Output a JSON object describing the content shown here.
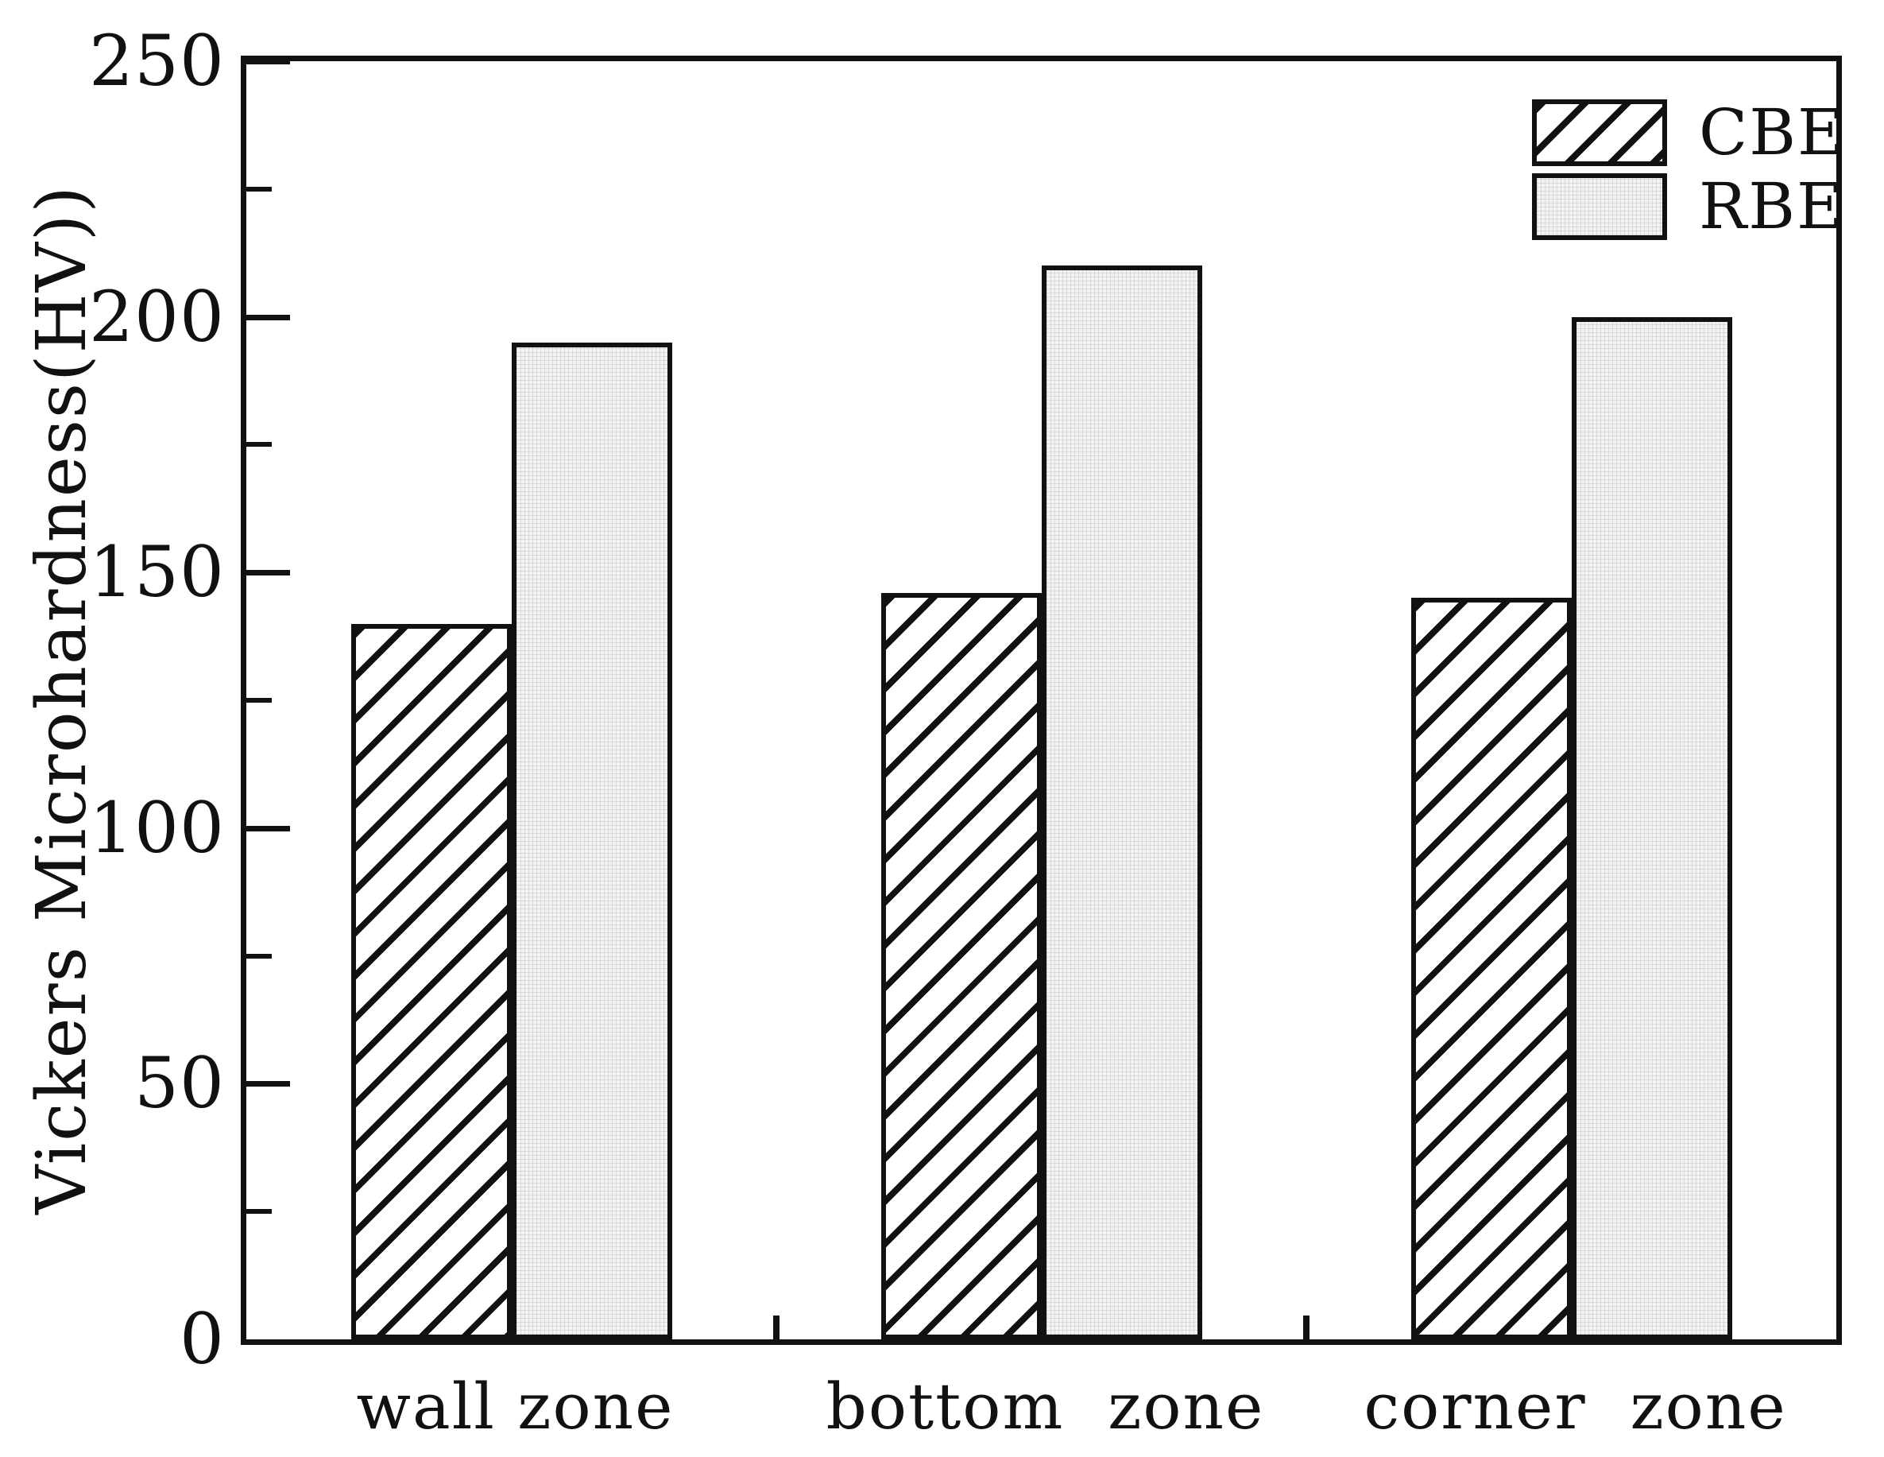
{
  "chart_data": {
    "type": "bar",
    "title": "",
    "categories": [
      "wall zone",
      "bottom  zone",
      "corner  zone"
    ],
    "series": [
      {
        "name": "CBE",
        "pattern": "diagonal-hatch",
        "values": [
          140,
          146,
          145
        ]
      },
      {
        "name": "RBE",
        "pattern": "fine-gray-grid",
        "values": [
          195,
          210,
          200
        ]
      }
    ],
    "xlabel": "",
    "ylabel": "Vickers Microhardness(HV))",
    "ylim": [
      0,
      250
    ],
    "yticks": [
      0,
      50,
      100,
      150,
      200,
      250
    ],
    "ytick_minor_step": 25,
    "grid": false,
    "legend_position": "upper-right",
    "bar_units": "HV"
  },
  "colors": {
    "ink": "#111111",
    "cbe_fill": "#ffffff",
    "rbe_fill": "#f3f3f3",
    "background": "#ffffff"
  }
}
